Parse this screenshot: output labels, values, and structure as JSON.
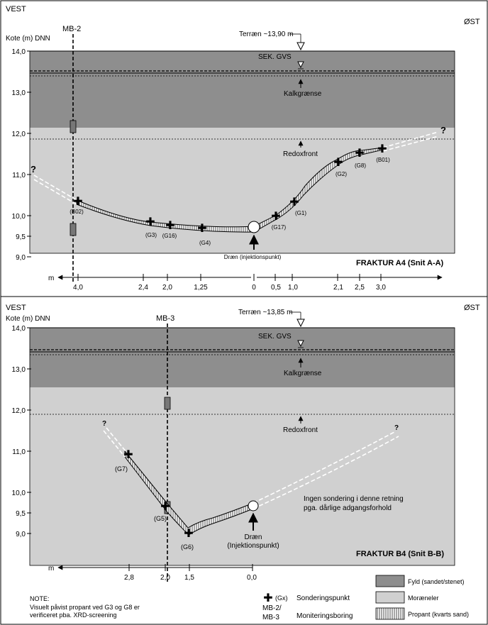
{
  "colors": {
    "fill_layer": "#8e8e8e",
    "moraine": "#d0d0d0",
    "propant_bg": "#ffffff",
    "line": "#000000"
  },
  "top": {
    "west": "VEST",
    "east": "ØST",
    "ylabel": "Kote (m) DNN",
    "yticks": [
      "14,0",
      "13,0",
      "12,0",
      "11,0",
      "10,0",
      "9,5",
      "9,0"
    ],
    "borehole": "MB-2",
    "terrain": "Terræn ~13,90 m",
    "gvs": "SEK. GVS",
    "kalk": "Kalkgrænse",
    "redox": "Redoxfront",
    "q1": "?",
    "q2": "?",
    "points": {
      "b02": "(B02)",
      "g3": "(G3)",
      "g16": "(G16)",
      "g4": "(G4)",
      "g17": "(G17)",
      "g1": "(G1)",
      "g2": "(G2)",
      "g8": "(G8)",
      "b01": "(B01)"
    },
    "drain": "Dræn (injektionspunkt)",
    "title": "FRAKTUR A4 (Snit A-A)",
    "axis_unit": "m",
    "dist_labels": [
      "4,0",
      "2,4",
      "2,0",
      "1,25",
      "0",
      "0,5",
      "1,0",
      "2,1",
      "2,5",
      "3,0"
    ]
  },
  "bottom": {
    "west": "VEST",
    "east": "ØST",
    "ylabel": "Kote (m) DNN",
    "yticks": [
      "14,0",
      "13,0",
      "12,0",
      "11,0",
      "10,0",
      "9,5",
      "9,0"
    ],
    "borehole": "MB-3",
    "terrain": "Terræn ~13,85 m",
    "gvs": "SEK. GVS",
    "kalk": "Kalkgrænse",
    "redox": "Redoxfront",
    "q1": "?",
    "q2": "?",
    "points": {
      "g7": "(G7)",
      "g5": "(G5)",
      "g6": "(G6)"
    },
    "drain_1": "Dræn",
    "drain_2": "(Injektionspunkt)",
    "no_sound_1": "Ingen sondering i denne retning",
    "no_sound_2": "pga. dårlige adgangsforhold",
    "title": "FRAKTUR B4 (Snit B-B)",
    "axis_unit": "m",
    "dist_labels": [
      "2,8",
      "2,0",
      "1,5",
      "0,0"
    ]
  },
  "note": {
    "heading": "NOTE:",
    "line1": "Visuelt påvist propant ved G3 og G8 er",
    "line2": "verificeret pba. XRD-screening"
  },
  "legend": {
    "gx": "(Gx)",
    "sondering": "Sonderingspunkt",
    "mb_1": "MB-2/",
    "mb_2": "MB-3",
    "monitorering": "Moniteringsboring",
    "fyld": "Fyld (sandet/stenet)",
    "moraene": "Moræneler",
    "propant": "Propant (kvarts sand)"
  }
}
